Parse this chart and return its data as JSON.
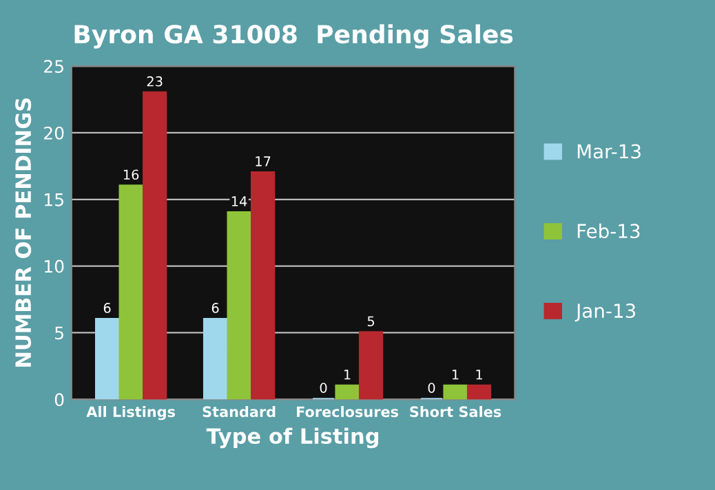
{
  "chart_data": {
    "type": "bar",
    "title": "Byron GA 31008  Pending Sales",
    "xlabel": "Type of Listing",
    "ylabel": "NUMBER OF PENDINGS",
    "categories": [
      "All Listings",
      "Standard",
      "Foreclosures",
      "Short Sales"
    ],
    "series": [
      {
        "name": "Mar-13",
        "color": "#9fd8ec",
        "values": [
          6,
          6,
          0,
          0
        ]
      },
      {
        "name": "Feb-13",
        "color": "#8fc43a",
        "values": [
          16,
          14,
          1,
          1
        ]
      },
      {
        "name": "Jan-13",
        "color": "#b8282e",
        "values": [
          23,
          17,
          5,
          1
        ]
      }
    ],
    "ylim": [
      0,
      25
    ],
    "yticks": [
      0,
      5,
      10,
      15,
      20,
      25
    ],
    "grid": "y",
    "legend": "right",
    "data_labels": true
  }
}
